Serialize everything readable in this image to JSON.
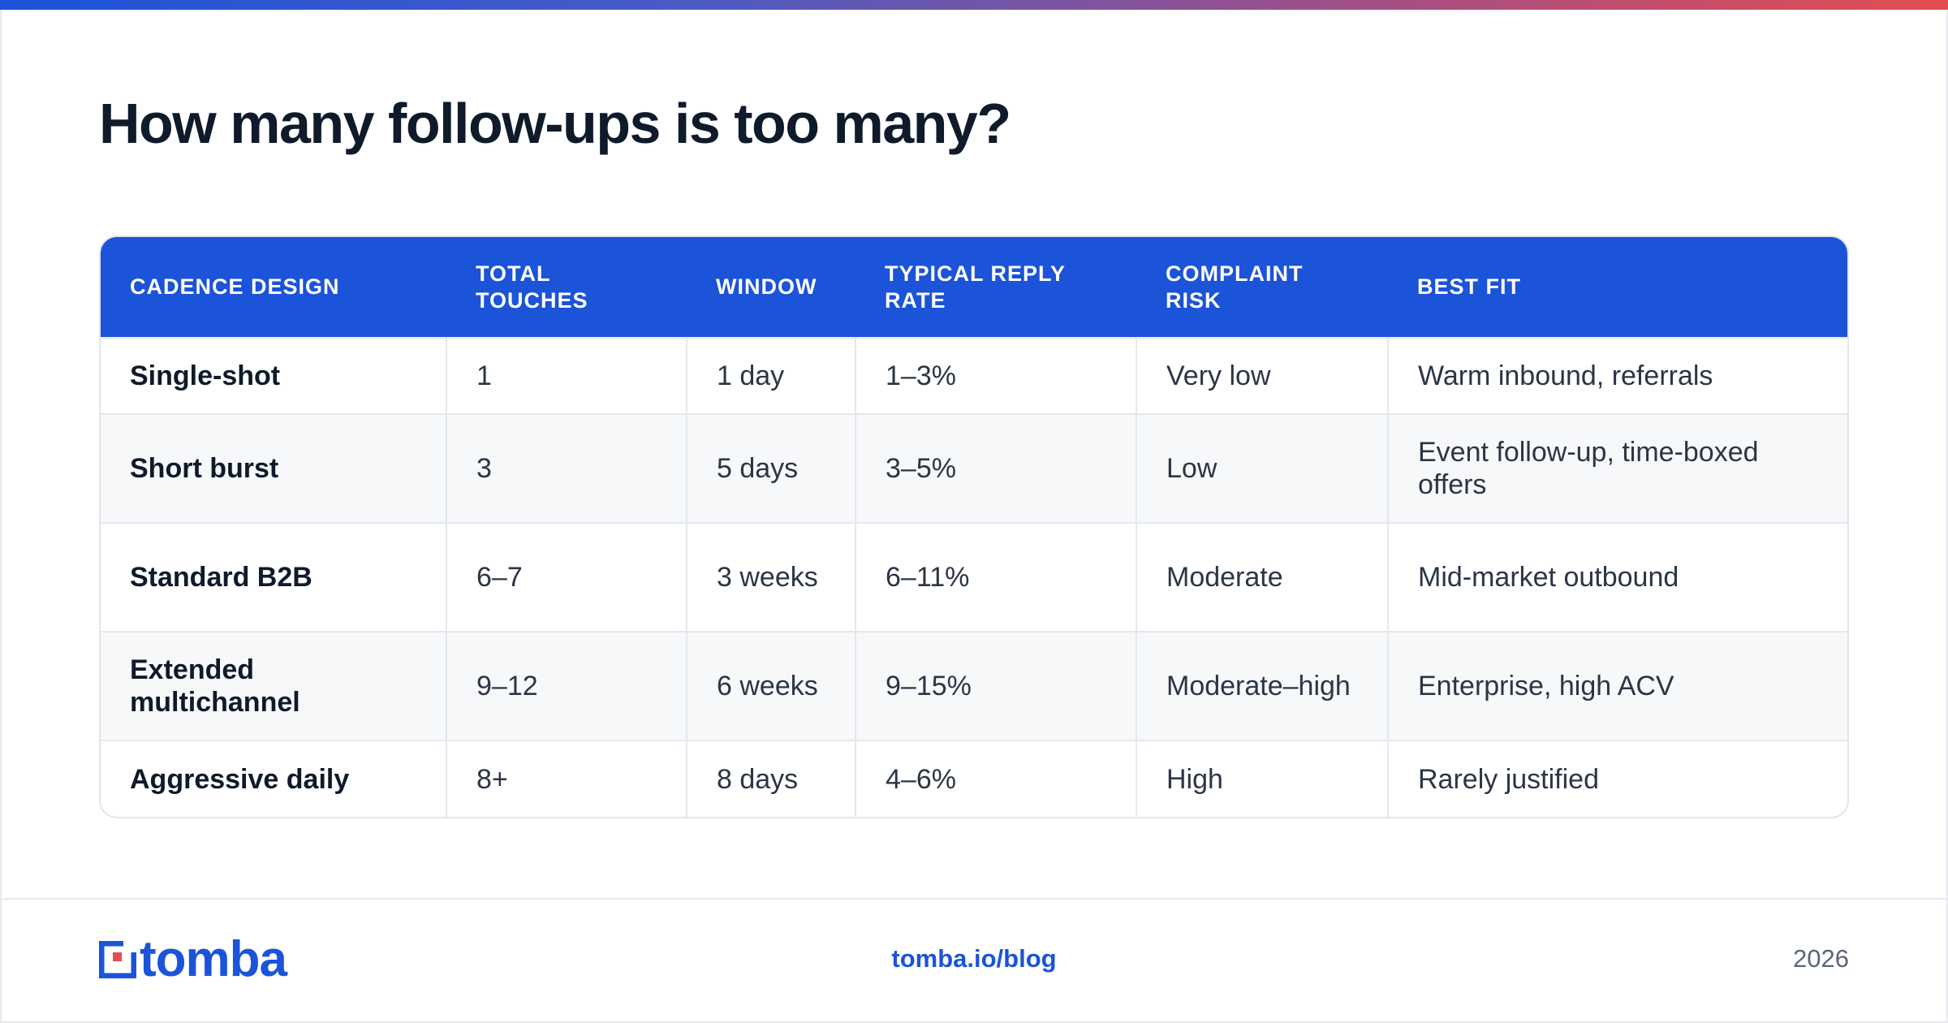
{
  "title": "How many follow-ups is too many?",
  "table": {
    "headers": [
      "CADENCE DESIGN",
      "TOTAL TOUCHES",
      "WINDOW",
      "TYPICAL REPLY RATE",
      "COMPLAINT RISK",
      "BEST FIT"
    ],
    "rows": [
      [
        "Single-shot",
        "1",
        "1 day",
        "1–3%",
        "Very low",
        "Warm inbound, referrals"
      ],
      [
        "Short burst",
        "3",
        "5 days",
        "3–5%",
        "Low",
        "Event follow-up, time-boxed offers"
      ],
      [
        "Standard B2B",
        "6–7",
        "3 weeks",
        "6–11%",
        "Moderate",
        "Mid-market outbound"
      ],
      [
        "Extended multichannel",
        "9–12",
        "6 weeks",
        "9–15%",
        "Moderate–high",
        "Enterprise, high ACV"
      ],
      [
        "Aggressive daily",
        "8+",
        "8 days",
        "4–6%",
        "High",
        "Rarely justified"
      ]
    ]
  },
  "footer": {
    "logo_text": "tomba",
    "logo_icon": "tomba-logo-icon",
    "link": "tomba.io/blog",
    "year": "2026"
  },
  "colors": {
    "accent": "#1b53d9",
    "gradient": [
      "#1b53d9",
      "#e34e52"
    ]
  }
}
